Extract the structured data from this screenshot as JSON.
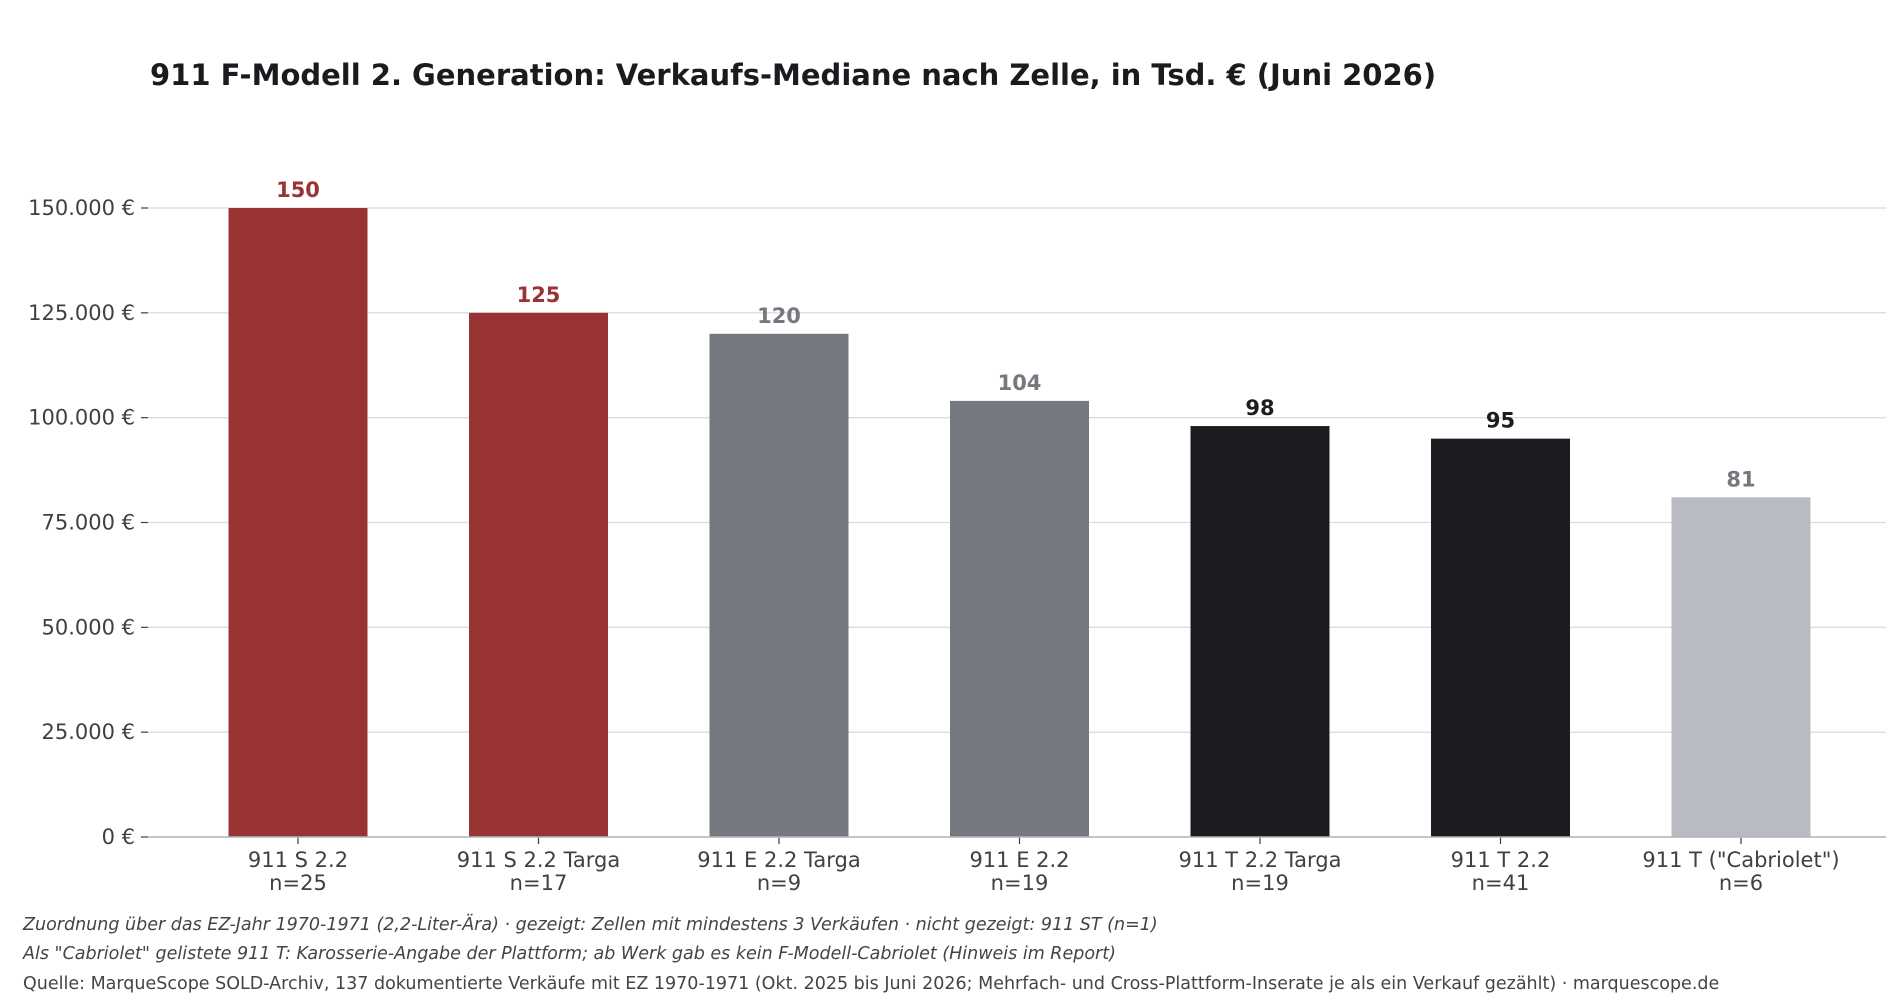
{
  "chart_data": {
    "type": "bar",
    "title": "911 F-Modell 2. Generation: Verkaufs-Mediane nach Zelle, in Tsd. € (Juni 2026)",
    "xlabel": "",
    "ylabel": "",
    "ylim": [
      0,
      150000
    ],
    "yticks": [
      0,
      25000,
      50000,
      75000,
      100000,
      125000,
      150000
    ],
    "ytick_labels": [
      "0 €",
      "25.000 €",
      "50.000 €",
      "75.000 €",
      "100.000 €",
      "125.000 €",
      "150.000 €"
    ],
    "grid": "horizontal",
    "categories": [
      {
        "name": "911 S 2.2",
        "count": "n=25"
      },
      {
        "name": "911 S 2.2 Targa",
        "count": "n=17"
      },
      {
        "name": "911 E 2.2 Targa",
        "count": "n=9"
      },
      {
        "name": "911 E 2.2",
        "count": "n=19"
      },
      {
        "name": "911 T 2.2 Targa",
        "count": "n=19"
      },
      {
        "name": "911 T 2.2",
        "count": "n=41"
      },
      {
        "name": "911 T (\"Cabriolet\")",
        "count": "n=6"
      }
    ],
    "values": [
      150000,
      125000,
      120000,
      104000,
      98000,
      95000,
      81000
    ],
    "value_labels": [
      "150",
      "125",
      "120",
      "104",
      "98",
      "95",
      "81"
    ],
    "bar_colors": [
      "#983434",
      "#983434",
      "#75787f",
      "#75787f",
      "#1c1d20",
      "#1c1d20",
      "#b9bbc2"
    ],
    "label_colors": [
      "#983434",
      "#983434",
      "#75787f",
      "#75787f",
      "#1c1d20",
      "#1c1d20",
      "#75787f"
    ]
  },
  "footnotes": {
    "line1": "Zuordnung über das EZ-Jahr 1970-1971 (2,2-Liter-Ära) · gezeigt: Zellen mit mindestens 3 Verkäufen · nicht gezeigt: 911 ST (n=1)",
    "line2": "Als \"Cabriolet\" gelistete 911 T: Karosserie-Angabe der Plattform; ab Werk gab es kein F-Modell-Cabriolet (Hinweis im Report)",
    "source": "Quelle: MarqueScope SOLD-Archiv, 137 dokumentierte Verkäufe mit EZ 1970-1971 (Okt. 2025 bis Juni 2026; Mehrfach- und Cross-Plattform-Inserate je als ein Verkauf gezählt) · marquescope.de"
  },
  "colors": {
    "grid": "#dcdcde",
    "axis": "#b4b4b8",
    "text": "#3f3f45"
  }
}
